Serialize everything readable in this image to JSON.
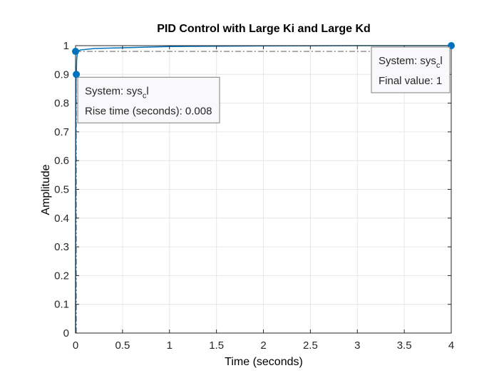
{
  "chart_data": {
    "type": "line",
    "title": "PID Control with Large Ki and Large Kd",
    "xlabel": "Time (seconds)",
    "ylabel": "Amplitude",
    "xlim": [
      0,
      4
    ],
    "ylim": [
      0,
      1
    ],
    "grid": true,
    "x_ticks": [
      0,
      0.5,
      1,
      1.5,
      2,
      2.5,
      3,
      3.5,
      4
    ],
    "x_tick_labels": [
      "0",
      "0.5",
      "1",
      "1.5",
      "2",
      "2.5",
      "3",
      "3.5",
      "4"
    ],
    "y_ticks": [
      0,
      0.1,
      0.2,
      0.3,
      0.4,
      0.5,
      0.6,
      0.7,
      0.8,
      0.9,
      1
    ],
    "y_tick_labels": [
      "0",
      "0.1",
      "0.2",
      "0.3",
      "0.4",
      "0.5",
      "0.6",
      "0.7",
      "0.8",
      "0.9",
      "1"
    ],
    "series": [
      {
        "color": "#0072bd",
        "x": [
          0,
          0.001,
          0.003,
          0.005,
          0.008,
          0.012,
          0.02,
          0.05,
          0.2,
          1,
          2,
          3,
          4
        ],
        "y": [
          0,
          0.5,
          0.78,
          0.88,
          0.9,
          0.95,
          0.98,
          0.985,
          0.99,
          0.997,
          0.999,
          1,
          1
        ]
      }
    ],
    "reference_lines": [
      {
        "orientation": "horizontal",
        "y": 0.98,
        "x_range": [
          0,
          4
        ],
        "style": "dash-dot",
        "color": "#404040"
      },
      {
        "orientation": "vertical",
        "x": 0.008,
        "y_range": [
          0,
          0.9
        ],
        "style": "dash-dot",
        "color": "#404040"
      }
    ],
    "markers": [
      {
        "x": 0,
        "y": 0.98,
        "color": "#0072bd"
      },
      {
        "x": 0.008,
        "y": 0.9,
        "color": "#0072bd"
      },
      {
        "x": 4,
        "y": 1,
        "color": "#0072bd"
      }
    ],
    "annotations": [
      {
        "anchor_x": 0.008,
        "anchor_y": 0.9,
        "placement": "below-right",
        "system_label": "System: sys",
        "system_subscript": "c",
        "system_suffix": "l",
        "value_line": "Rise time (seconds): 0.008"
      },
      {
        "anchor_x": 4,
        "anchor_y": 1,
        "placement": "below-left",
        "system_label": "System: sys",
        "system_subscript": "c",
        "system_suffix": "l",
        "value_line": "Final value: 1"
      }
    ]
  },
  "colors": {
    "axis": "#262626",
    "grid": "#e6e6e6",
    "series": "#0072bd",
    "tooltip_bg": "#f9f9fc",
    "tooltip_border": "#808080"
  }
}
